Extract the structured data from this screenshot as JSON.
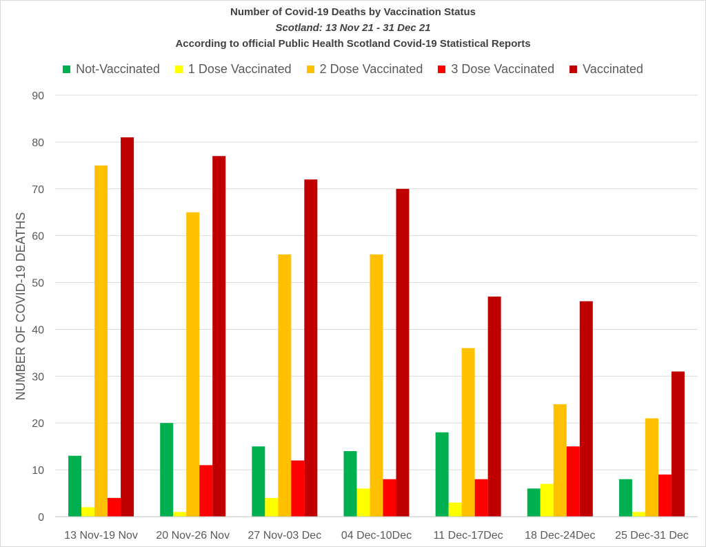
{
  "chart_data": {
    "type": "bar",
    "title": "Number of Covid-19 Deaths by Vaccination Status",
    "subtitle": "Scotland: 13 Nov 21 - 31 Dec 21",
    "source_note": "According to official Public Health Scotland Covid-19 Statistical Reports",
    "xlabel": "",
    "ylabel": "NUMBER OF COVID-19 DEATHS",
    "ylim": [
      0,
      90
    ],
    "yticks": [
      0,
      10,
      20,
      30,
      40,
      50,
      60,
      70,
      80,
      90
    ],
    "grid": true,
    "legend_position": "top",
    "categories": [
      "13 Nov-19 Nov",
      "20 Nov-26 Nov",
      "27 Nov-03 Dec",
      "04 Dec-10Dec",
      "11 Dec-17Dec",
      "18 Dec-24Dec",
      "25 Dec-31 Dec"
    ],
    "series": [
      {
        "name": "Not-Vaccinated",
        "color": "#00b050",
        "values": [
          13,
          20,
          15,
          14,
          18,
          6,
          8
        ]
      },
      {
        "name": "1 Dose Vaccinated",
        "color": "#ffff00",
        "values": [
          2,
          1,
          4,
          6,
          3,
          7,
          1
        ]
      },
      {
        "name": "2 Dose Vaccinated",
        "color": "#ffc000",
        "values": [
          75,
          65,
          56,
          56,
          36,
          24,
          21
        ]
      },
      {
        "name": "3 Dose Vaccinated",
        "color": "#ff0000",
        "values": [
          4,
          11,
          12,
          8,
          8,
          15,
          9
        ]
      },
      {
        "name": "Vaccinated",
        "color": "#c00000",
        "values": [
          81,
          77,
          72,
          70,
          47,
          46,
          31
        ]
      }
    ]
  }
}
